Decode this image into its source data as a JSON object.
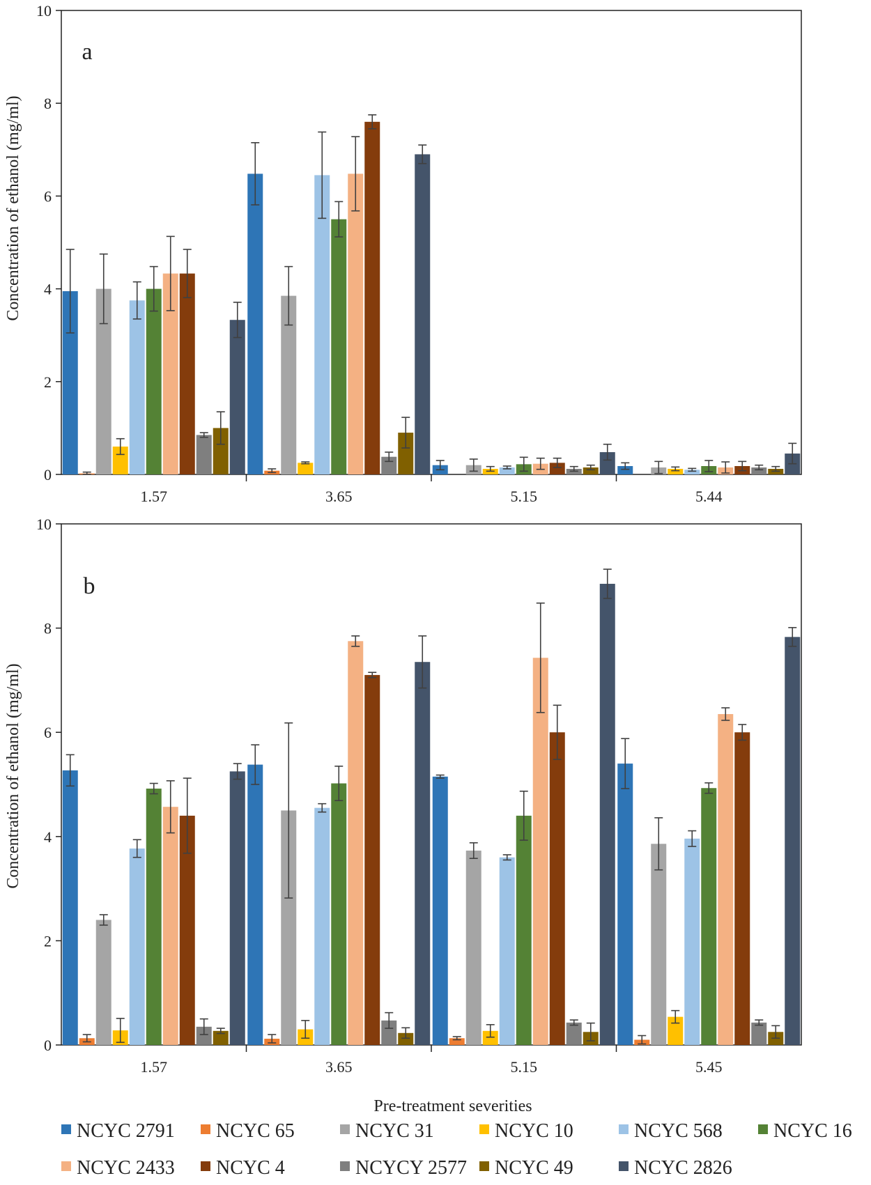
{
  "colors": {
    "NCYC 2791": "#2e75b6",
    "NCYC 65": "#ed7d31",
    "NCYC 31": "#a5a5a5",
    "NCYC 10": "#ffc000",
    "NCYC 568": "#9dc3e6",
    "NCYC 16": "#548235",
    "NCYC 2433": "#f4b183",
    "NCYC 4": "#843c0c",
    "NCYCY 2577": "#7f7f7f",
    "NCYC 49": "#806000",
    "NCYC 2826": "#44546a",
    "error_bar": "#404040",
    "axis": "#222222"
  },
  "legend": [
    "NCYC 2791",
    "NCYC 65",
    "NCYC 31",
    "NCYC 10",
    "NCYC 568",
    "NCYC 16",
    "NCYC 2433",
    "NCYC 4",
    "NCYCY 2577",
    "NCYC 49",
    "NCYC 2826"
  ],
  "xlabel": "Pre-treatment severities",
  "chart_data": [
    {
      "type": "bar",
      "panel": "a",
      "ylabel": "Concentration of ethanol (mg/ml)",
      "ylim": [
        0,
        10
      ],
      "yticks": [
        "0",
        "2",
        "4",
        "6",
        "8",
        "10"
      ],
      "categories": [
        "1.57",
        "3.65",
        "5.15",
        "5.44"
      ],
      "series": [
        {
          "name": "NCYC 2791",
          "values": [
            3.95,
            6.48,
            0.2,
            0.18
          ],
          "errors": [
            0.9,
            0.67,
            0.1,
            0.07
          ]
        },
        {
          "name": "NCYC 65",
          "values": [
            0.02,
            0.08,
            0.0,
            0.0
          ],
          "errors": [
            0.03,
            0.04,
            0.0,
            0.0
          ]
        },
        {
          "name": "NCYC 31",
          "values": [
            4.0,
            3.85,
            0.2,
            0.15
          ],
          "errors": [
            0.75,
            0.63,
            0.13,
            0.13
          ]
        },
        {
          "name": "NCYC 10",
          "values": [
            0.6,
            0.25,
            0.12,
            0.12
          ],
          "errors": [
            0.17,
            0.02,
            0.05,
            0.04
          ]
        },
        {
          "name": "NCYC 568",
          "values": [
            3.75,
            6.45,
            0.15,
            0.1
          ],
          "errors": [
            0.4,
            0.93,
            0.03,
            0.03
          ]
        },
        {
          "name": "NCYC 16",
          "values": [
            4.0,
            5.5,
            0.22,
            0.18
          ],
          "errors": [
            0.48,
            0.38,
            0.15,
            0.12
          ]
        },
        {
          "name": "NCYC 2433",
          "values": [
            4.33,
            6.48,
            0.23,
            0.15
          ],
          "errors": [
            0.8,
            0.8,
            0.12,
            0.12
          ]
        },
        {
          "name": "NCYC 4",
          "values": [
            4.33,
            7.6,
            0.25,
            0.18
          ],
          "errors": [
            0.52,
            0.15,
            0.1,
            0.1
          ]
        },
        {
          "name": "NCYCY 2577",
          "values": [
            0.85,
            0.38,
            0.12,
            0.15
          ],
          "errors": [
            0.05,
            0.1,
            0.05,
            0.05
          ]
        },
        {
          "name": "NCYC 49",
          "values": [
            1.0,
            0.9,
            0.15,
            0.12
          ],
          "errors": [
            0.35,
            0.33,
            0.05,
            0.05
          ]
        },
        {
          "name": "NCYC 2826",
          "values": [
            3.33,
            6.9,
            0.48,
            0.45
          ],
          "errors": [
            0.38,
            0.2,
            0.17,
            0.22
          ]
        }
      ]
    },
    {
      "type": "bar",
      "panel": "b",
      "ylabel": "Concentration of ethanol (mg/ml)",
      "ylim": [
        0,
        10
      ],
      "yticks": [
        "0",
        "2",
        "4",
        "6",
        "8",
        "10"
      ],
      "categories": [
        "1.57",
        "3.65",
        "5.15",
        "5.45"
      ],
      "series": [
        {
          "name": "NCYC 2791",
          "values": [
            5.27,
            5.38,
            5.15,
            5.4
          ],
          "errors": [
            0.3,
            0.38,
            0.03,
            0.48
          ]
        },
        {
          "name": "NCYC 65",
          "values": [
            0.13,
            0.12,
            0.13,
            0.1
          ],
          "errors": [
            0.07,
            0.08,
            0.03,
            0.08
          ]
        },
        {
          "name": "NCYC 31",
          "values": [
            2.4,
            4.5,
            3.73,
            3.86
          ],
          "errors": [
            0.1,
            1.68,
            0.15,
            0.5
          ]
        },
        {
          "name": "NCYC 10",
          "values": [
            0.28,
            0.3,
            0.27,
            0.54
          ],
          "errors": [
            0.23,
            0.17,
            0.12,
            0.12
          ]
        },
        {
          "name": "NCYC 568",
          "values": [
            3.77,
            4.55,
            3.6,
            3.96
          ],
          "errors": [
            0.17,
            0.08,
            0.05,
            0.15
          ]
        },
        {
          "name": "NCYC 16",
          "values": [
            4.92,
            5.02,
            4.4,
            4.93
          ],
          "errors": [
            0.1,
            0.33,
            0.47,
            0.1
          ]
        },
        {
          "name": "NCYC 2433",
          "values": [
            4.57,
            7.75,
            7.43,
            6.35
          ],
          "errors": [
            0.5,
            0.1,
            1.05,
            0.12
          ]
        },
        {
          "name": "NCYC 4",
          "values": [
            4.4,
            7.1,
            6.0,
            6.0
          ],
          "errors": [
            0.72,
            0.05,
            0.52,
            0.15
          ]
        },
        {
          "name": "NCYCY 2577",
          "values": [
            0.35,
            0.47,
            0.43,
            0.43
          ],
          "errors": [
            0.15,
            0.15,
            0.05,
            0.05
          ]
        },
        {
          "name": "NCYC 49",
          "values": [
            0.27,
            0.23,
            0.25,
            0.25
          ],
          "errors": [
            0.05,
            0.1,
            0.17,
            0.12
          ]
        },
        {
          "name": "NCYC 2826",
          "values": [
            5.25,
            7.35,
            8.85,
            7.83
          ],
          "errors": [
            0.15,
            0.5,
            0.28,
            0.18
          ]
        }
      ]
    }
  ]
}
